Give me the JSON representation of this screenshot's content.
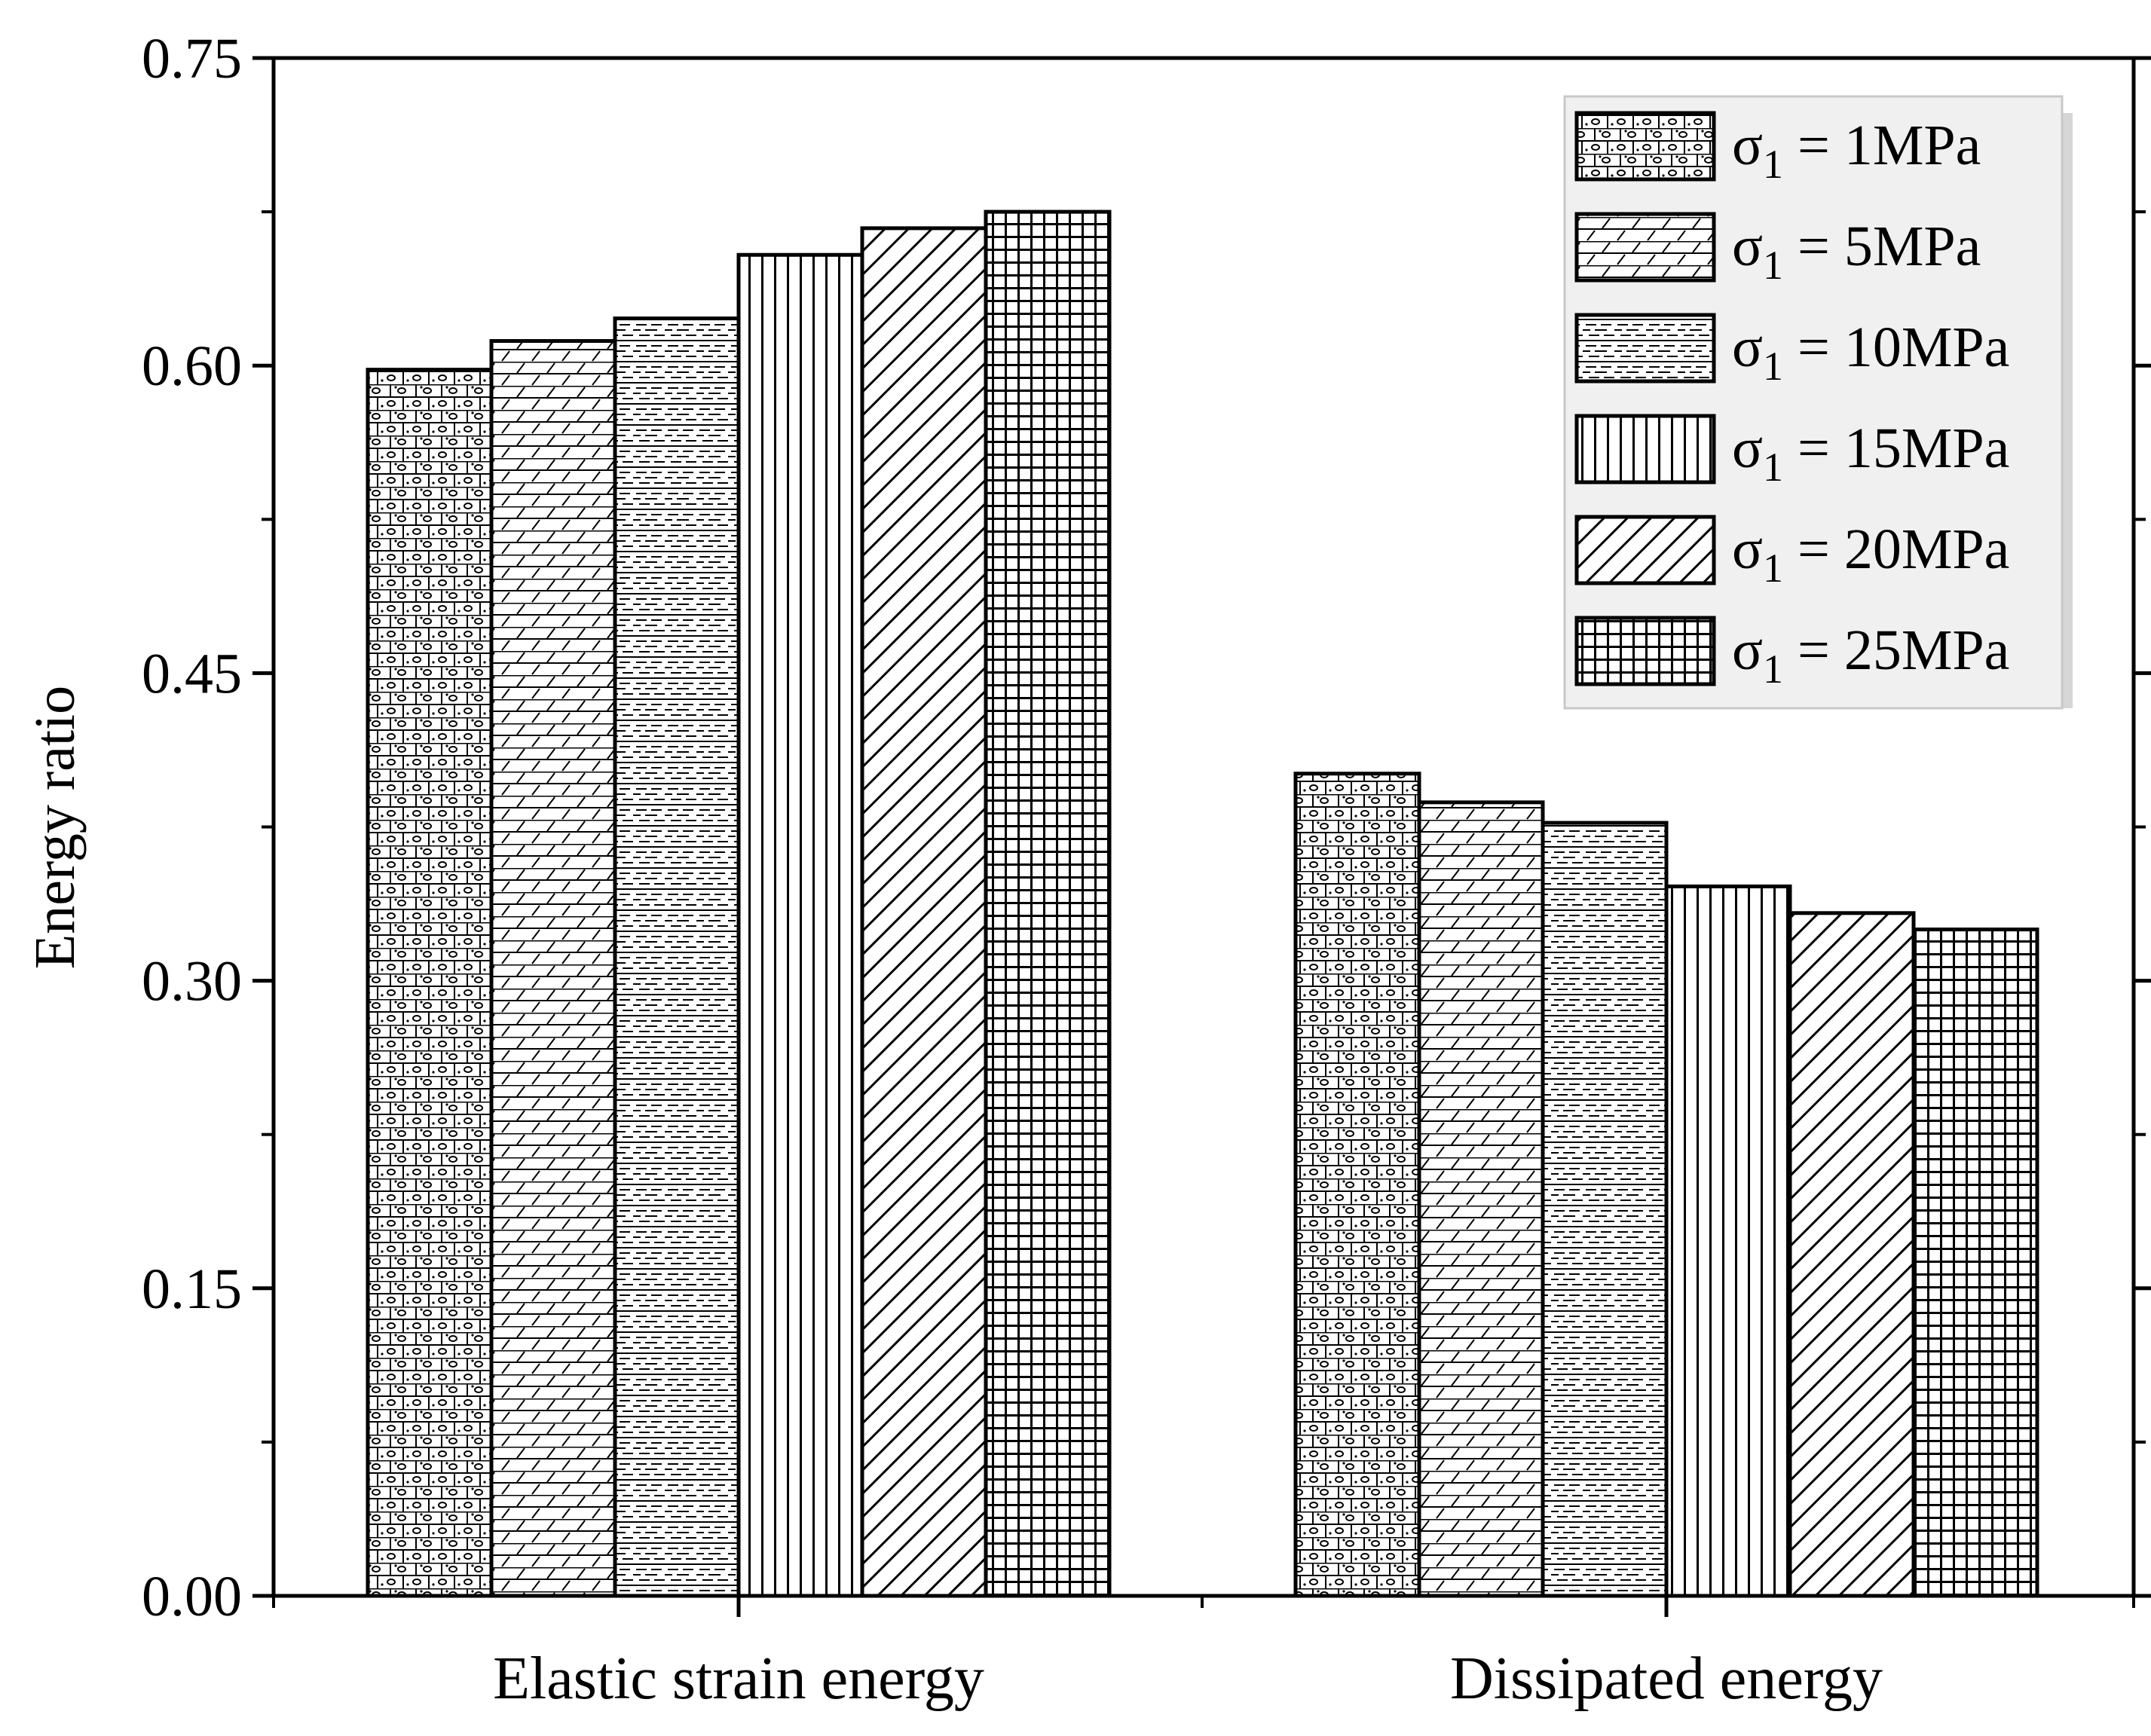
{
  "chart_data": {
    "type": "bar",
    "title": "",
    "xlabel": "",
    "ylabel": "Energy ratio",
    "ylim": [
      0,
      0.75
    ],
    "yticks": [
      "0.00",
      "0.15",
      "0.30",
      "0.45",
      "0.60",
      "0.75"
    ],
    "categories": [
      "Elastic strain energy",
      "Dissipated energy"
    ],
    "series": [
      {
        "name": "1MPa",
        "values": [
          0.598,
          0.401
        ]
      },
      {
        "name": "5MPa",
        "values": [
          0.612,
          0.387
        ]
      },
      {
        "name": "10MPa",
        "values": [
          0.623,
          0.377
        ]
      },
      {
        "name": "15MPa",
        "values": [
          0.654,
          0.346
        ]
      },
      {
        "name": "20MPa",
        "values": [
          0.667,
          0.333
        ]
      },
      {
        "name": "25MPa",
        "values": [
          0.675,
          0.325
        ]
      }
    ],
    "legend_position": "top-right",
    "legend_symbol": "σ",
    "legend_subscript": "1",
    "legend_equals": "="
  }
}
